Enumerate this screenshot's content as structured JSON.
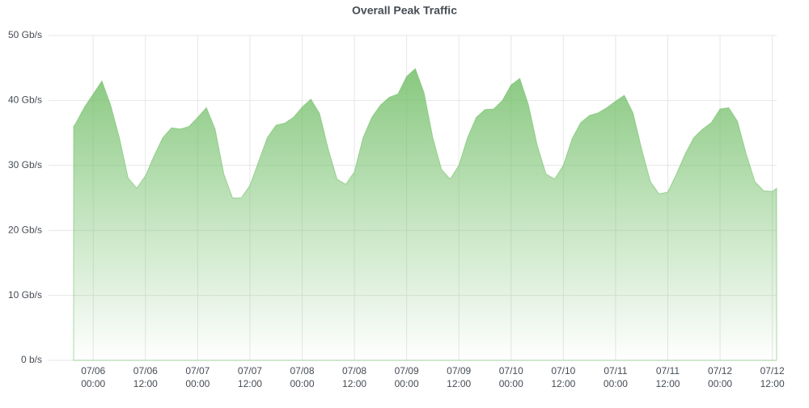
{
  "chart_data": {
    "type": "area",
    "title": "Overall Peak Traffic",
    "color": "#73bf69",
    "grid": true,
    "xlim": [
      "07/05 19:30",
      "07/12 13:00"
    ],
    "ylim": [
      0,
      50
    ],
    "yticks": [
      {
        "value": 0,
        "label": "0 b/s"
      },
      {
        "value": 10,
        "label": "10 Gb/s"
      },
      {
        "value": 20,
        "label": "20 Gb/s"
      },
      {
        "value": 30,
        "label": "30 Gb/s"
      },
      {
        "value": 40,
        "label": "40 Gb/s"
      },
      {
        "value": 50,
        "label": "50 Gb/s"
      }
    ],
    "xticks": [
      {
        "value": "07/06 00:00",
        "label": [
          "07/06",
          "00:00"
        ]
      },
      {
        "value": "07/06 12:00",
        "label": [
          "07/06",
          "12:00"
        ]
      },
      {
        "value": "07/07 00:00",
        "label": [
          "07/07",
          "00:00"
        ]
      },
      {
        "value": "07/07 12:00",
        "label": [
          "07/07",
          "12:00"
        ]
      },
      {
        "value": "07/08 00:00",
        "label": [
          "07/08",
          "00:00"
        ]
      },
      {
        "value": "07/08 12:00",
        "label": [
          "07/08",
          "12:00"
        ]
      },
      {
        "value": "07/09 00:00",
        "label": [
          "07/09",
          "00:00"
        ]
      },
      {
        "value": "07/09 12:00",
        "label": [
          "07/09",
          "12:00"
        ]
      },
      {
        "value": "07/10 00:00",
        "label": [
          "07/10",
          "00:00"
        ]
      },
      {
        "value": "07/10 12:00",
        "label": [
          "07/10",
          "12:00"
        ]
      },
      {
        "value": "07/11 00:00",
        "label": [
          "07/11",
          "00:00"
        ]
      },
      {
        "value": "07/11 12:00",
        "label": [
          "07/11",
          "12:00"
        ]
      },
      {
        "value": "07/12 00:00",
        "label": [
          "07/12",
          "00:00"
        ]
      },
      {
        "value": "07/12 12:00",
        "label": [
          "07/12",
          "12:00"
        ]
      }
    ],
    "x": [
      "07/05 19:30",
      "07/05 20:00",
      "07/05 22:00",
      "07/06 00:00",
      "07/06 02:00",
      "07/06 04:00",
      "07/06 06:00",
      "07/06 08:00",
      "07/06 10:00",
      "07/06 12:00",
      "07/06 14:00",
      "07/06 16:00",
      "07/06 18:00",
      "07/06 20:00",
      "07/06 22:00",
      "07/07 00:00",
      "07/07 02:00",
      "07/07 04:00",
      "07/07 06:00",
      "07/07 08:00",
      "07/07 10:00",
      "07/07 12:00",
      "07/07 14:00",
      "07/07 16:00",
      "07/07 18:00",
      "07/07 20:00",
      "07/07 22:00",
      "07/08 00:00",
      "07/08 02:00",
      "07/08 04:00",
      "07/08 06:00",
      "07/08 08:00",
      "07/08 10:00",
      "07/08 12:00",
      "07/08 14:00",
      "07/08 16:00",
      "07/08 18:00",
      "07/08 20:00",
      "07/08 22:00",
      "07/09 00:00",
      "07/09 02:00",
      "07/09 04:00",
      "07/09 06:00",
      "07/09 08:00",
      "07/09 10:00",
      "07/09 12:00",
      "07/09 14:00",
      "07/09 16:00",
      "07/09 18:00",
      "07/09 20:00",
      "07/09 22:00",
      "07/10 00:00",
      "07/10 02:00",
      "07/10 04:00",
      "07/10 06:00",
      "07/10 08:00",
      "07/10 10:00",
      "07/10 12:00",
      "07/10 14:00",
      "07/10 16:00",
      "07/10 18:00",
      "07/10 20:00",
      "07/10 22:00",
      "07/11 00:00",
      "07/11 02:00",
      "07/11 04:00",
      "07/11 06:00",
      "07/11 08:00",
      "07/11 10:00",
      "07/11 12:00",
      "07/11 14:00",
      "07/11 16:00",
      "07/11 18:00",
      "07/11 20:00",
      "07/11 22:00",
      "07/12 00:00",
      "07/12 02:00",
      "07/12 04:00",
      "07/12 06:00",
      "07/12 08:00",
      "07/12 10:00",
      "07/12 12:00",
      "07/12 13:00"
    ],
    "values": [
      36.0,
      36.5,
      39.0,
      41.0,
      43.0,
      39.3,
      34.3,
      28.1,
      26.5,
      28.4,
      31.5,
      34.3,
      35.8,
      35.6,
      36.0,
      37.4,
      38.9,
      35.6,
      28.7,
      25.0,
      25.0,
      26.9,
      30.6,
      34.3,
      36.2,
      36.5,
      37.4,
      39.0,
      40.2,
      38.0,
      32.5,
      27.9,
      27.1,
      29.0,
      34.3,
      37.4,
      39.3,
      40.5,
      41.0,
      43.7,
      44.9,
      41.2,
      34.3,
      29.4,
      27.9,
      30.0,
      34.3,
      37.4,
      38.6,
      38.7,
      40.0,
      42.4,
      43.4,
      39.3,
      33.1,
      28.7,
      27.9,
      30.0,
      34.1,
      36.6,
      37.7,
      38.1,
      38.9,
      39.9,
      40.8,
      38.1,
      32.5,
      27.5,
      25.6,
      25.9,
      28.7,
      31.8,
      34.3,
      35.6,
      36.6,
      38.7,
      38.9,
      36.8,
      31.8,
      27.5,
      26.1,
      26.0,
      26.5
    ]
  }
}
